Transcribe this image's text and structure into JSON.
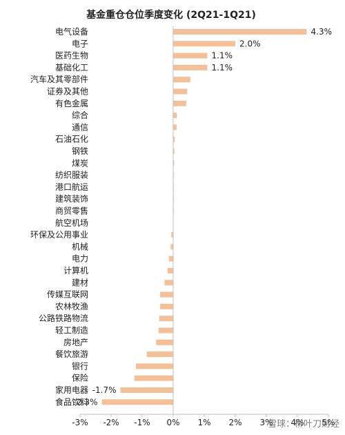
{
  "chart_data": {
    "type": "bar",
    "orientation": "horizontal",
    "title": "基金重仓仓位季度变化 (2Q21-1Q21)",
    "categories": [
      "电气设备",
      "电子",
      "医药生物",
      "基础化工",
      "汽车及其零部件",
      "证券及其他",
      "有色金属",
      "综合",
      "通信",
      "石油石化",
      "钢铁",
      "煤炭",
      "纺织服装",
      "港口航运",
      "建筑装饰",
      "商贸零售",
      "航空机场",
      "环保及公用事业",
      "机械",
      "电力",
      "计算机",
      "建材",
      "传媒互联网",
      "农林牧渔",
      "公路铁路物流",
      "轻工制造",
      "房地产",
      "餐饮旅游",
      "银行",
      "保险",
      "家用电器",
      "食品饮料"
    ],
    "values": [
      4.3,
      2.0,
      1.1,
      1.1,
      0.55,
      0.45,
      0.42,
      0.12,
      0.11,
      0.05,
      0.04,
      0.03,
      0.02,
      0.01,
      0.0,
      0.0,
      -0.01,
      -0.06,
      -0.08,
      -0.14,
      -0.18,
      -0.28,
      -0.42,
      -0.42,
      -0.45,
      -0.47,
      -0.55,
      -0.85,
      -1.2,
      -1.25,
      -1.7,
      -2.3
    ],
    "data_labels": {
      "0": "4.3%",
      "1": "2.0%",
      "2": "1.1%",
      "3": "1.1%",
      "30": "-1.7%",
      "31": "-2.3%"
    },
    "xlim": [
      -3,
      5
    ],
    "x_ticks": [
      "-3%",
      "-2%",
      "-1%",
      "0%",
      "1%",
      "2%",
      "3%",
      "4%",
      "5%"
    ],
    "bar_color": "#f4c09a",
    "grid": false,
    "legend": "none"
  },
  "watermark": "雪球：柳叶刀财经"
}
